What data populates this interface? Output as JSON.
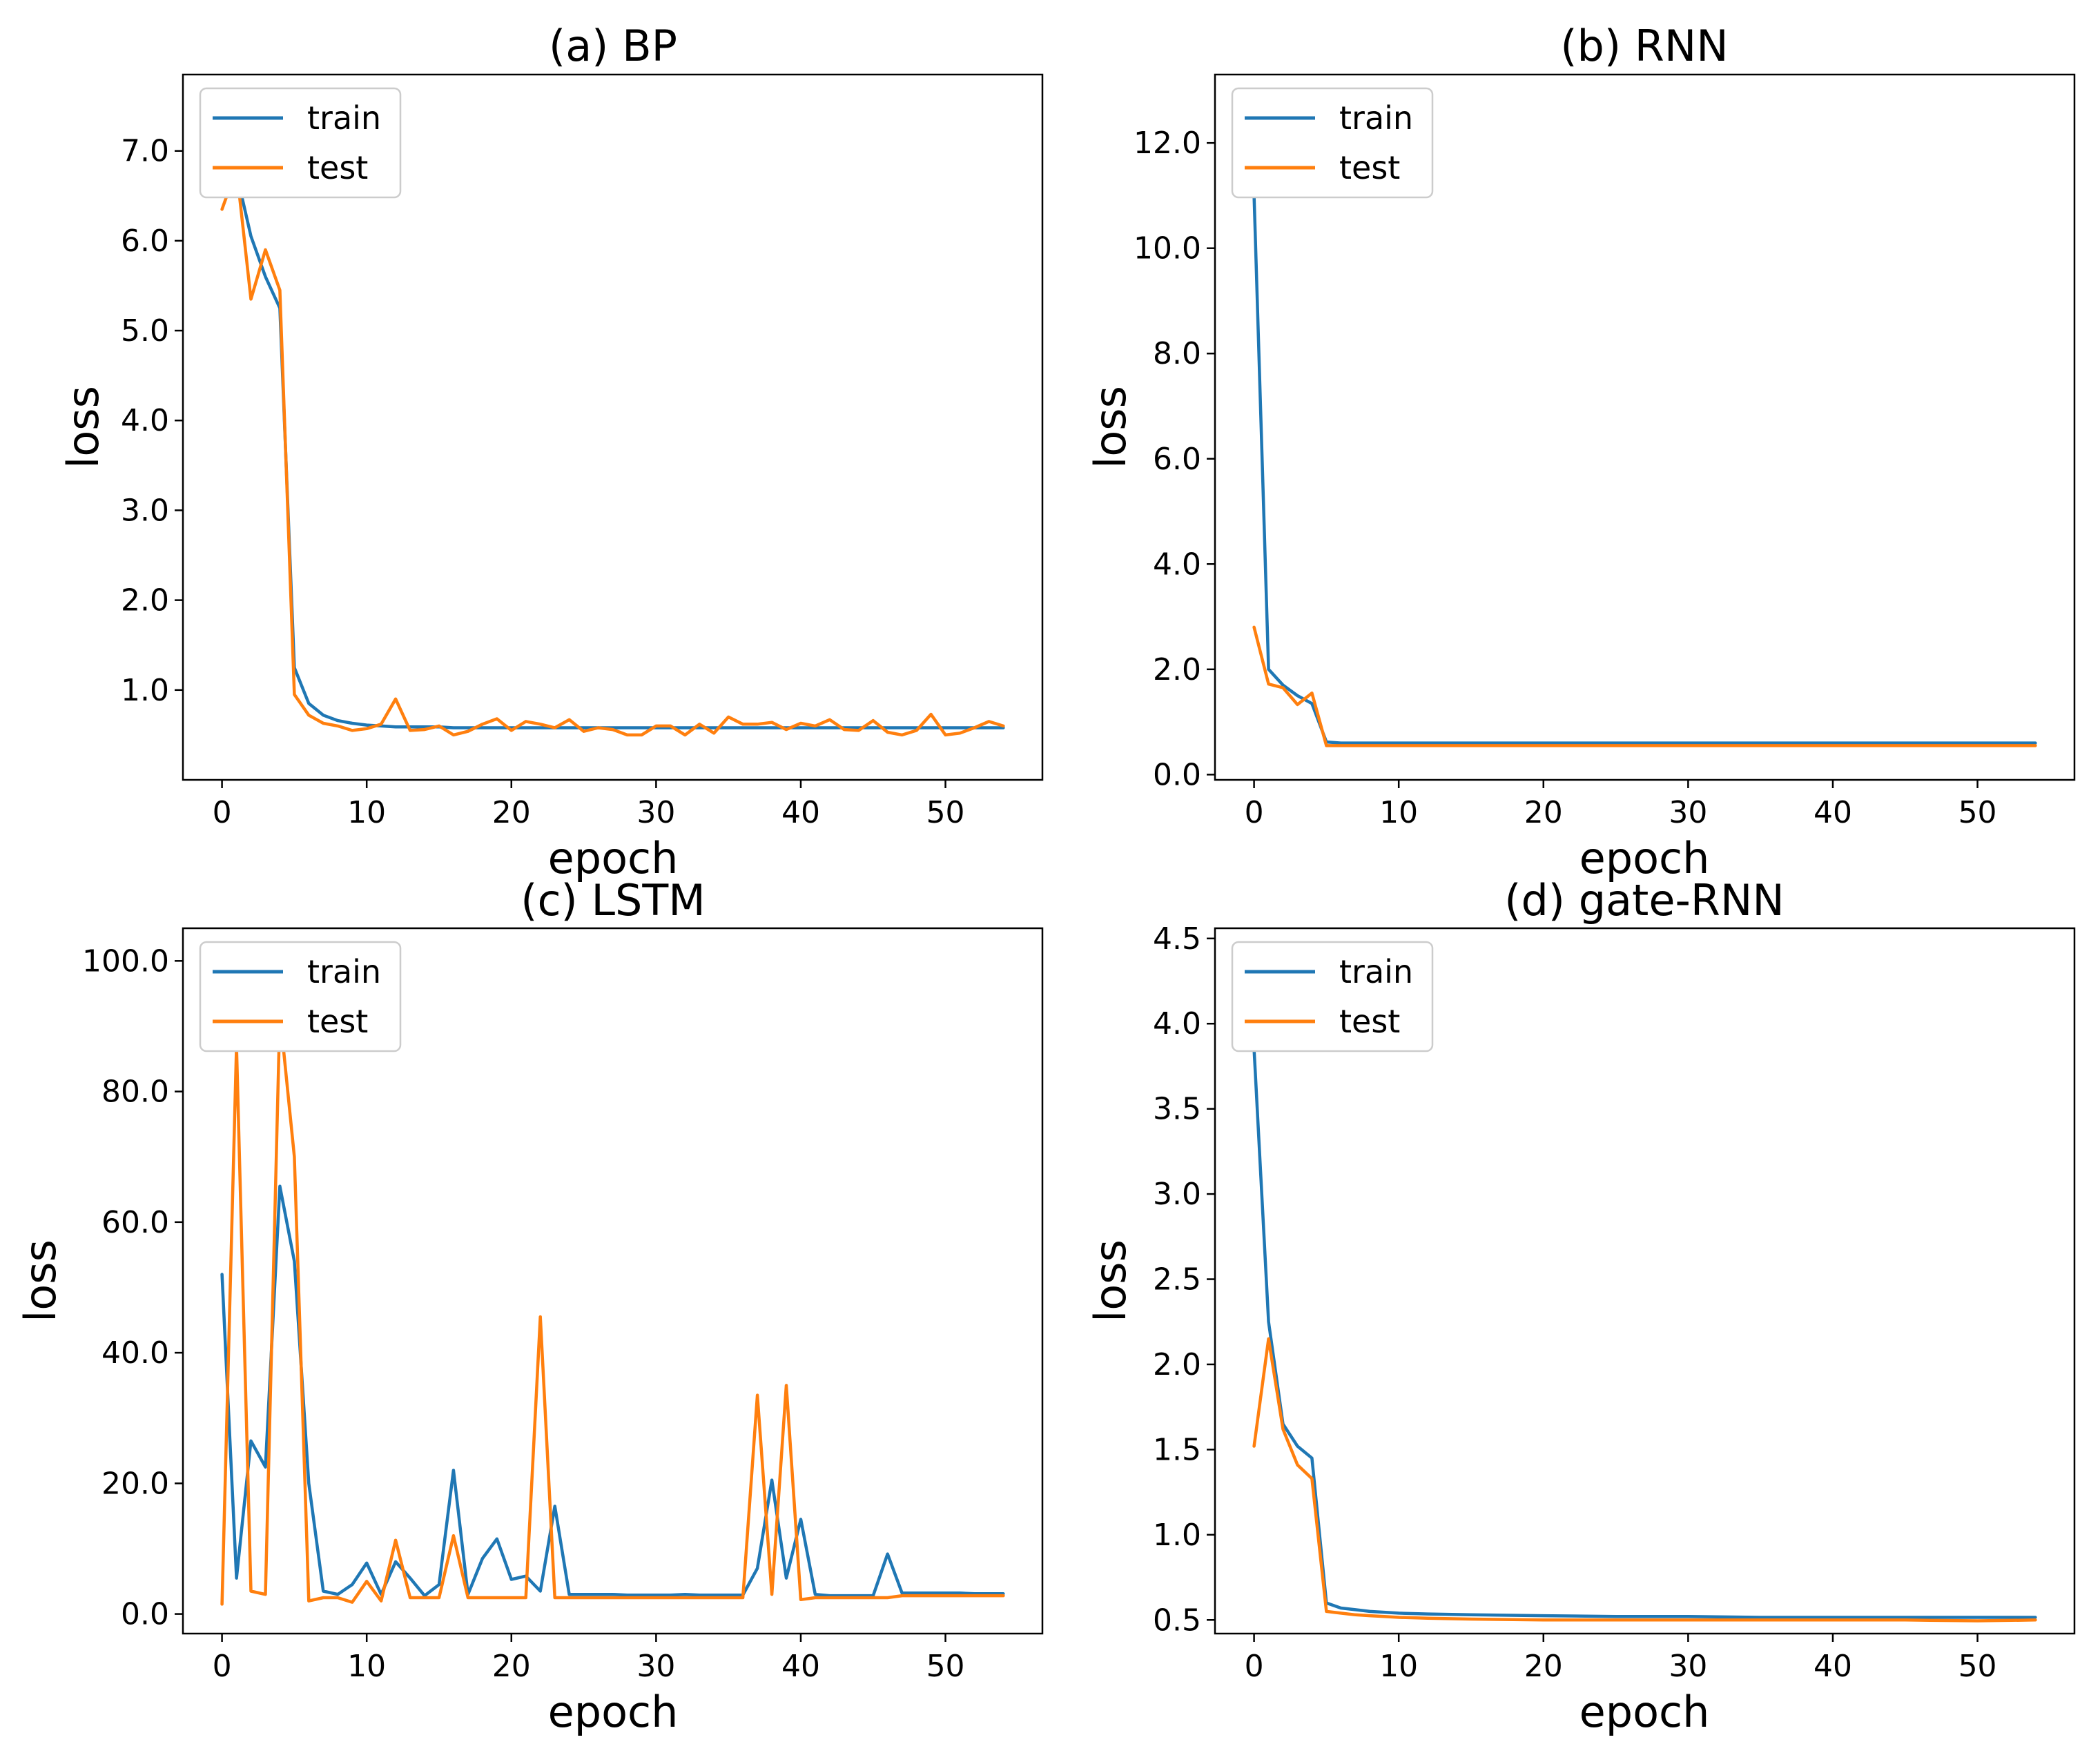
{
  "figure": {
    "colors": {
      "train": "#1f77b4",
      "test": "#ff7f0e",
      "axes": "#000000",
      "legend_border": "#cccccc"
    }
  },
  "chart_data": [
    {
      "type": "line",
      "title": "(a)  BP",
      "xlabel": "epoch",
      "ylabel": "loss",
      "xlim": [
        -2.7,
        56.7
      ],
      "ylim": [
        0,
        7.85
      ],
      "xticks": [
        0,
        10,
        20,
        30,
        40,
        50
      ],
      "xtick_labels": [
        "0",
        "10",
        "20",
        "30",
        "40",
        "50"
      ],
      "yticks": [
        1,
        2,
        3,
        4,
        5,
        6,
        7
      ],
      "ytick_labels": [
        "1.0",
        "2.0",
        "3.0",
        "4.0",
        "5.0",
        "6.0",
        "7.0"
      ],
      "legend": {
        "position": "top-left",
        "entries": [
          "train",
          "test"
        ]
      },
      "series": [
        {
          "name": "train",
          "color": "#1f77b4",
          "x": [
            0,
            1,
            2,
            3,
            4,
            5,
            6,
            7,
            8,
            9,
            10,
            11,
            12,
            13,
            14,
            15,
            16,
            17,
            18,
            19,
            20,
            21,
            22,
            23,
            24,
            25,
            26,
            27,
            28,
            29,
            30,
            31,
            32,
            33,
            34,
            35,
            36,
            37,
            38,
            39,
            40,
            41,
            42,
            43,
            44,
            45,
            46,
            47,
            48,
            49,
            50,
            51,
            52,
            53,
            54
          ],
          "y": [
            6.55,
            6.75,
            6.05,
            5.6,
            5.25,
            1.25,
            0.85,
            0.72,
            0.66,
            0.63,
            0.61,
            0.6,
            0.59,
            0.59,
            0.59,
            0.59,
            0.58,
            0.58,
            0.58,
            0.58,
            0.58,
            0.58,
            0.58,
            0.58,
            0.58,
            0.58,
            0.58,
            0.58,
            0.58,
            0.58,
            0.58,
            0.58,
            0.58,
            0.58,
            0.58,
            0.58,
            0.58,
            0.58,
            0.58,
            0.58,
            0.58,
            0.58,
            0.58,
            0.58,
            0.58,
            0.58,
            0.58,
            0.58,
            0.58,
            0.58,
            0.58,
            0.58,
            0.58,
            0.58,
            0.58
          ]
        },
        {
          "name": "test",
          "color": "#ff7f0e",
          "x": [
            0,
            1,
            2,
            3,
            4,
            5,
            6,
            7,
            8,
            9,
            10,
            11,
            12,
            13,
            14,
            15,
            16,
            17,
            18,
            19,
            20,
            21,
            22,
            23,
            24,
            25,
            26,
            27,
            28,
            29,
            30,
            31,
            32,
            33,
            34,
            35,
            36,
            37,
            38,
            39,
            40,
            41,
            42,
            43,
            44,
            45,
            46,
            47,
            48,
            49,
            50,
            51,
            52,
            53,
            54
          ],
          "y": [
            6.35,
            6.8,
            5.35,
            5.9,
            5.45,
            0.95,
            0.72,
            0.63,
            0.6,
            0.55,
            0.57,
            0.62,
            0.9,
            0.55,
            0.56,
            0.6,
            0.5,
            0.54,
            0.62,
            0.68,
            0.55,
            0.65,
            0.62,
            0.58,
            0.67,
            0.54,
            0.58,
            0.56,
            0.5,
            0.5,
            0.6,
            0.6,
            0.5,
            0.62,
            0.52,
            0.7,
            0.62,
            0.62,
            0.64,
            0.56,
            0.63,
            0.6,
            0.67,
            0.56,
            0.55,
            0.66,
            0.53,
            0.5,
            0.55,
            0.73,
            0.5,
            0.52,
            0.58,
            0.65,
            0.6
          ]
        }
      ]
    },
    {
      "type": "line",
      "title": "(b)  RNN",
      "xlabel": "epoch",
      "ylabel": "loss",
      "xlim": [
        -2.7,
        56.7
      ],
      "ylim": [
        -0.1,
        13.3
      ],
      "xticks": [
        0,
        10,
        20,
        30,
        40,
        50
      ],
      "xtick_labels": [
        "0",
        "10",
        "20",
        "30",
        "40",
        "50"
      ],
      "yticks": [
        0,
        2,
        4,
        6,
        8,
        10,
        12
      ],
      "ytick_labels": [
        "0.0",
        "2.0",
        "4.0",
        "6.0",
        "8.0",
        "10.0",
        "12.0"
      ],
      "legend": {
        "position": "top-left",
        "entries": [
          "train",
          "test"
        ]
      },
      "series": [
        {
          "name": "train",
          "color": "#1f77b4",
          "x": [
            0,
            1,
            2,
            3,
            4,
            5,
            6,
            7,
            8,
            9,
            10,
            15,
            20,
            25,
            30,
            35,
            40,
            45,
            50,
            54
          ],
          "y": [
            11.0,
            2.0,
            1.7,
            1.5,
            1.35,
            0.62,
            0.6,
            0.6,
            0.6,
            0.6,
            0.6,
            0.6,
            0.6,
            0.6,
            0.6,
            0.6,
            0.6,
            0.6,
            0.6,
            0.6
          ]
        },
        {
          "name": "test",
          "color": "#ff7f0e",
          "x": [
            0,
            1,
            2,
            3,
            4,
            5,
            6,
            7,
            8,
            9,
            10,
            15,
            20,
            25,
            30,
            35,
            40,
            45,
            50,
            54
          ],
          "y": [
            2.8,
            1.72,
            1.65,
            1.33,
            1.55,
            0.55,
            0.55,
            0.55,
            0.55,
            0.55,
            0.55,
            0.55,
            0.55,
            0.55,
            0.55,
            0.55,
            0.55,
            0.55,
            0.55,
            0.55
          ]
        }
      ]
    },
    {
      "type": "line",
      "title": "(c)  LSTM",
      "xlabel": "epoch",
      "ylabel": "loss",
      "xlim": [
        -2.7,
        56.7
      ],
      "ylim": [
        -3,
        105
      ],
      "xticks": [
        0,
        10,
        20,
        30,
        40,
        50
      ],
      "xtick_labels": [
        "0",
        "10",
        "20",
        "30",
        "40",
        "50"
      ],
      "yticks": [
        0,
        20,
        40,
        60,
        80,
        100
      ],
      "ytick_labels": [
        "0.0",
        "20.0",
        "40.0",
        "60.0",
        "80.0",
        "100.0"
      ],
      "legend": {
        "position": "top-left",
        "entries": [
          "train",
          "test"
        ]
      },
      "series": [
        {
          "name": "train",
          "color": "#1f77b4",
          "x": [
            0,
            1,
            2,
            3,
            4,
            5,
            6,
            7,
            8,
            9,
            10,
            11,
            12,
            13,
            14,
            15,
            16,
            17,
            18,
            19,
            20,
            21,
            22,
            23,
            24,
            25,
            26,
            27,
            28,
            29,
            30,
            31,
            32,
            33,
            34,
            35,
            36,
            37,
            38,
            39,
            40,
            41,
            42,
            43,
            44,
            45,
            46,
            47,
            48,
            49,
            50,
            51,
            52,
            53,
            54
          ],
          "y": [
            52,
            5.5,
            26.5,
            22.5,
            65.5,
            54,
            20,
            3.5,
            3,
            4.5,
            7.8,
            3,
            8,
            5.5,
            2.8,
            4.5,
            22,
            3,
            8.5,
            11.5,
            5.3,
            5.8,
            3.5,
            16.5,
            3,
            3,
            3,
            3,
            2.9,
            2.9,
            2.9,
            2.9,
            3,
            2.9,
            2.9,
            2.9,
            2.9,
            7,
            20.5,
            5.5,
            14.5,
            3,
            2.8,
            2.8,
            2.8,
            2.8,
            9.2,
            3.2,
            3.2,
            3.2,
            3.2,
            3.2,
            3.1,
            3.1,
            3.1
          ]
        },
        {
          "name": "test",
          "color": "#ff7f0e",
          "x": [
            0,
            1,
            2,
            3,
            4,
            5,
            6,
            7,
            8,
            9,
            10,
            11,
            12,
            13,
            14,
            15,
            16,
            17,
            18,
            19,
            20,
            21,
            22,
            23,
            24,
            25,
            26,
            27,
            28,
            29,
            30,
            31,
            32,
            33,
            34,
            35,
            36,
            37,
            38,
            39,
            40,
            41,
            42,
            43,
            44,
            45,
            46,
            47,
            48,
            49,
            50,
            51,
            52,
            53,
            54
          ],
          "y": [
            1.5,
            87,
            3.5,
            3,
            92,
            70,
            2,
            2.5,
            2.5,
            1.8,
            5,
            2,
            11.3,
            2.5,
            2.5,
            2.5,
            12,
            2.5,
            2.5,
            2.5,
            2.5,
            2.5,
            45.5,
            2.5,
            2.5,
            2.5,
            2.5,
            2.5,
            2.5,
            2.5,
            2.5,
            2.5,
            2.5,
            2.5,
            2.5,
            2.5,
            2.5,
            33.5,
            3,
            35,
            2.2,
            2.5,
            2.5,
            2.5,
            2.5,
            2.5,
            2.5,
            2.8,
            2.8,
            2.8,
            2.8,
            2.8,
            2.8,
            2.8,
            2.8
          ]
        }
      ]
    },
    {
      "type": "line",
      "title": "(d)  gate-RNN",
      "xlabel": "epoch",
      "ylabel": "loss",
      "xlim": [
        -2.7,
        56.7
      ],
      "ylim": [
        0.42,
        4.56
      ],
      "xticks": [
        0,
        10,
        20,
        30,
        40,
        50
      ],
      "xtick_labels": [
        "0",
        "10",
        "20",
        "30",
        "40",
        "50"
      ],
      "yticks": [
        0.5,
        1.0,
        1.5,
        2.0,
        2.5,
        3.0,
        3.5,
        4.0,
        4.5
      ],
      "ytick_labels": [
        "0.5",
        "1.0",
        "1.5",
        "2.0",
        "2.5",
        "3.0",
        "3.5",
        "4.0",
        "4.5"
      ],
      "legend": {
        "position": "top-left",
        "entries": [
          "train",
          "test"
        ]
      },
      "series": [
        {
          "name": "train",
          "color": "#1f77b4",
          "x": [
            0,
            1,
            2,
            3,
            4,
            5,
            6,
            7,
            8,
            9,
            10,
            12,
            15,
            20,
            25,
            30,
            35,
            40,
            45,
            50,
            54
          ],
          "y": [
            3.85,
            2.25,
            1.65,
            1.52,
            1.45,
            0.6,
            0.57,
            0.56,
            0.55,
            0.545,
            0.54,
            0.535,
            0.53,
            0.525,
            0.52,
            0.52,
            0.515,
            0.515,
            0.515,
            0.515,
            0.515
          ]
        },
        {
          "name": "test",
          "color": "#ff7f0e",
          "x": [
            0,
            1,
            2,
            3,
            4,
            5,
            6,
            7,
            8,
            9,
            10,
            12,
            15,
            20,
            25,
            30,
            35,
            40,
            45,
            50,
            54
          ],
          "y": [
            1.52,
            2.15,
            1.62,
            1.41,
            1.33,
            0.55,
            0.54,
            0.53,
            0.525,
            0.52,
            0.515,
            0.51,
            0.505,
            0.5,
            0.5,
            0.5,
            0.5,
            0.5,
            0.5,
            0.495,
            0.5
          ]
        }
      ]
    }
  ]
}
